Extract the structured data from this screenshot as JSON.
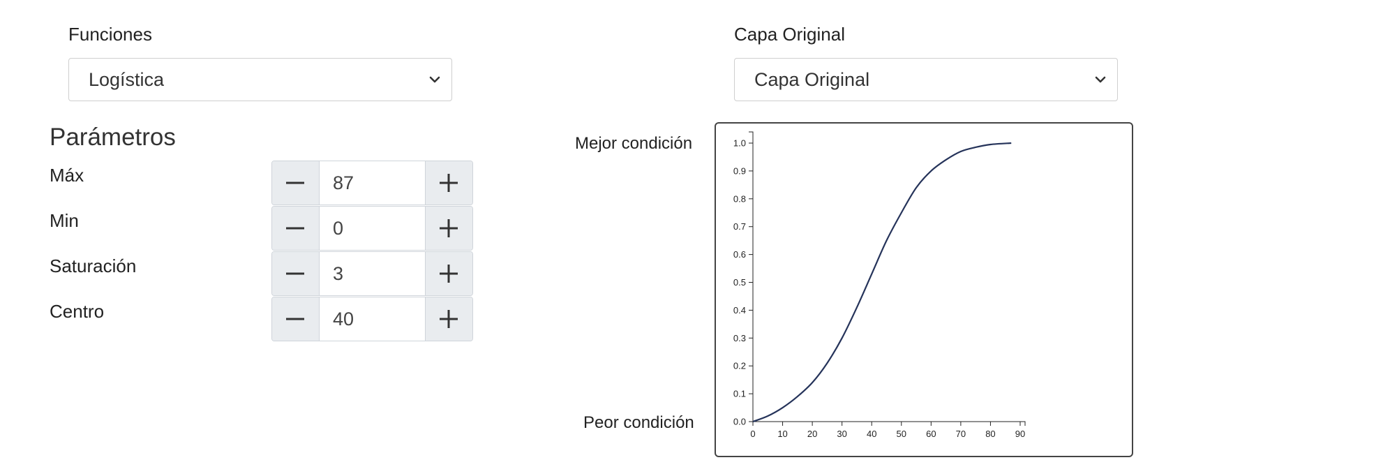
{
  "functions": {
    "label": "Funciones",
    "selected": "Logística"
  },
  "layer": {
    "label": "Capa Original",
    "selected": "Capa Original"
  },
  "parameters": {
    "title": "Parámetros",
    "items": [
      {
        "label": "Máx",
        "value": "87"
      },
      {
        "label": "Min",
        "value": "0"
      },
      {
        "label": "Saturación",
        "value": "3"
      },
      {
        "label": "Centro",
        "value": "40"
      }
    ]
  },
  "conditions": {
    "best": "Mejor condición",
    "worst": "Peor condición"
  },
  "icons": {
    "select_arrow": "chevron-down-icon",
    "decrement": "minus-icon",
    "increment": "plus-icon"
  },
  "colors": {
    "curve": "#25335a",
    "button_bg": "#e9ecef",
    "border": "#cfd4da"
  },
  "chart_data": {
    "type": "line",
    "title": "",
    "xlabel": "",
    "ylabel": "",
    "xlim": [
      0,
      90
    ],
    "ylim": [
      0,
      1.0
    ],
    "x_ticks": [
      "0",
      "10",
      "20",
      "30",
      "40",
      "50",
      "60",
      "70",
      "80",
      "90"
    ],
    "y_ticks": [
      "0.0",
      "0.1",
      "0.2",
      "0.3",
      "0.4",
      "0.5",
      "0.6",
      "0.7",
      "0.8",
      "0.9",
      "1.0"
    ],
    "grid": false,
    "legend": "none",
    "series": [
      {
        "x": [
          0,
          5,
          10,
          15,
          20,
          25,
          30,
          35,
          40,
          45,
          50,
          55,
          60,
          65,
          70,
          75,
          80,
          87
        ],
        "y": [
          0.0,
          0.02,
          0.05,
          0.09,
          0.14,
          0.21,
          0.3,
          0.41,
          0.53,
          0.65,
          0.75,
          0.84,
          0.9,
          0.94,
          0.97,
          0.985,
          0.995,
          1.0
        ]
      }
    ]
  }
}
